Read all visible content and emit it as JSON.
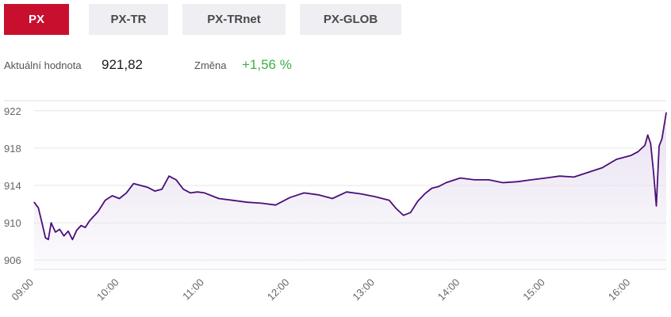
{
  "tabs": [
    {
      "label": "PX",
      "active": true
    },
    {
      "label": "PX-TR",
      "active": false
    },
    {
      "label": "PX-TRnet",
      "active": false
    },
    {
      "label": "PX-GLOB",
      "active": false
    }
  ],
  "stats": {
    "value_label": "Aktuální hodnota",
    "value": "921,82",
    "change_label": "Změna",
    "change": "+1,56 %"
  },
  "colors": {
    "accent": "#c8102e",
    "line": "#4b0f7a",
    "fill": "#e9e2f1",
    "positive": "#3cb043",
    "grid": "#e6e6e6"
  },
  "chart_data": {
    "type": "area",
    "xlabel": "",
    "ylabel": "",
    "y_ticks": [
      "922",
      "918",
      "914",
      "910",
      "906"
    ],
    "x_ticks": [
      "09:00",
      "10:00",
      "11:00",
      "12:00",
      "13:00",
      "14:00",
      "15:00",
      "16:00"
    ],
    "ylim": [
      905,
      923
    ],
    "xlim": [
      "09:00",
      "16:25"
    ],
    "grid": true,
    "series": [
      {
        "x": [
          "09:00",
          "09:03",
          "09:06",
          "09:08",
          "09:10",
          "09:12",
          "09:15",
          "09:18",
          "09:21",
          "09:24",
          "09:27",
          "09:30",
          "09:33",
          "09:36",
          "09:39",
          "09:42",
          "09:45",
          "09:50",
          "09:55",
          "10:00",
          "10:05",
          "10:10",
          "10:15",
          "10:20",
          "10:25",
          "10:30",
          "10:35",
          "10:40",
          "10:45",
          "10:50",
          "10:55",
          "11:00",
          "11:10",
          "11:20",
          "11:30",
          "11:40",
          "11:50",
          "12:00",
          "12:10",
          "12:20",
          "12:30",
          "12:40",
          "12:50",
          "13:00",
          "13:10",
          "13:15",
          "13:20",
          "13:25",
          "13:30",
          "13:35",
          "13:40",
          "13:45",
          "13:50",
          "14:00",
          "14:10",
          "14:20",
          "14:30",
          "14:40",
          "14:50",
          "15:00",
          "15:10",
          "15:20",
          "15:30",
          "15:40",
          "15:50",
          "16:00",
          "16:05",
          "16:10",
          "16:12",
          "16:14",
          "16:16",
          "16:18",
          "16:20",
          "16:22",
          "16:25"
        ],
        "values": [
          912.2,
          911.6,
          909.7,
          908.4,
          908.2,
          910.0,
          909.0,
          909.3,
          908.6,
          909.1,
          908.2,
          909.2,
          909.7,
          909.5,
          910.2,
          910.7,
          911.2,
          912.4,
          912.9,
          912.6,
          913.2,
          914.2,
          914.0,
          913.8,
          913.4,
          913.6,
          915.0,
          914.6,
          913.6,
          913.2,
          913.3,
          913.2,
          912.6,
          912.4,
          912.2,
          912.1,
          911.9,
          912.7,
          913.2,
          913.0,
          912.6,
          913.3,
          913.1,
          912.8,
          912.4,
          911.5,
          910.8,
          911.1,
          912.3,
          913.1,
          913.7,
          913.9,
          914.3,
          914.8,
          914.6,
          914.6,
          914.3,
          914.4,
          914.6,
          914.8,
          915.0,
          914.9,
          915.4,
          915.9,
          916.8,
          917.2,
          917.6,
          918.3,
          919.4,
          918.5,
          915.5,
          911.8,
          918.2,
          919.0,
          921.8
        ]
      }
    ]
  }
}
